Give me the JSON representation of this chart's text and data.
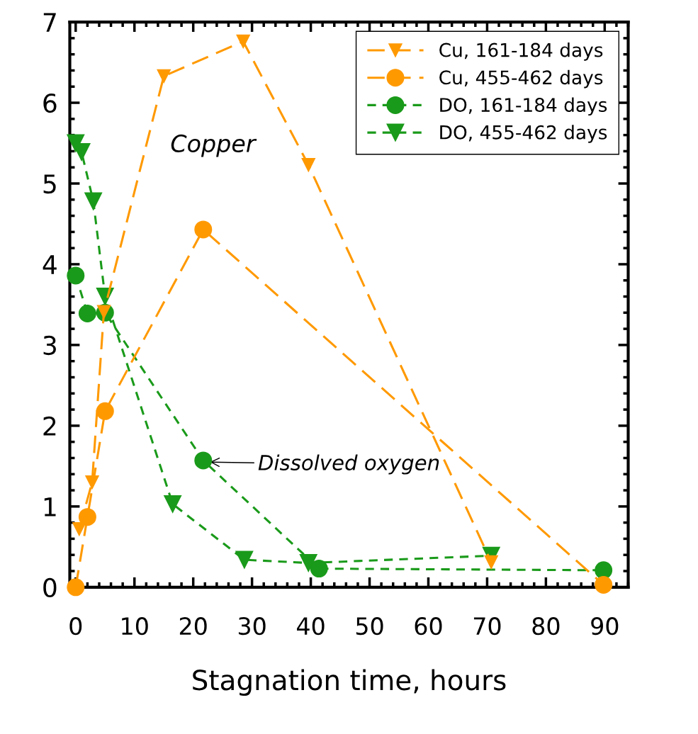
{
  "chart_data": {
    "type": "line",
    "xlabel": "Stagnation time, hours",
    "xlim": [
      -1,
      94
    ],
    "ylim": [
      0,
      7
    ],
    "xticks": [
      0,
      10,
      20,
      30,
      40,
      50,
      60,
      70,
      80,
      90
    ],
    "yticks": [
      0,
      1,
      2,
      3,
      4,
      5,
      6,
      7
    ],
    "legend": "top right",
    "line_style": "dashed",
    "grid": false,
    "series": [
      {
        "name": "Cu, 161-184 days",
        "color": "#ff9900",
        "marker": "triangle",
        "x": [
          0.6,
          2.8,
          4.8,
          15,
          28.5,
          39.6,
          70.7
        ],
        "values": [
          0.72,
          1.3,
          3.41,
          6.33,
          6.76,
          5.23,
          0.31
        ]
      },
      {
        "name": "Cu, 455-462 days",
        "color": "#ff9900",
        "marker": "circle",
        "x": [
          0,
          2,
          5,
          21.7,
          89.8
        ],
        "values": [
          0,
          0.87,
          2.18,
          4.43,
          0.03
        ]
      },
      {
        "name": "DO, 161-184 days",
        "color": "#1a9a1a",
        "marker": "circle",
        "x": [
          0,
          2,
          5,
          21.7,
          41.4,
          89.8
        ],
        "values": [
          3.86,
          3.39,
          3.4,
          1.57,
          0.23,
          0.21
        ]
      },
      {
        "name": "DO, 455-462 days",
        "color": "#1a9a1a",
        "marker": "triangle",
        "x": [
          0,
          1,
          3,
          5,
          16.5,
          28.7,
          39.6,
          70.7
        ],
        "values": [
          5.5,
          5.39,
          4.78,
          3.6,
          1.03,
          0.34,
          0.3,
          0.39
        ]
      }
    ],
    "annotations": [
      "Copper",
      {
        "text": "Dissolved oxygen",
        "x": 22.5,
        "y": 1.55
      }
    ]
  }
}
